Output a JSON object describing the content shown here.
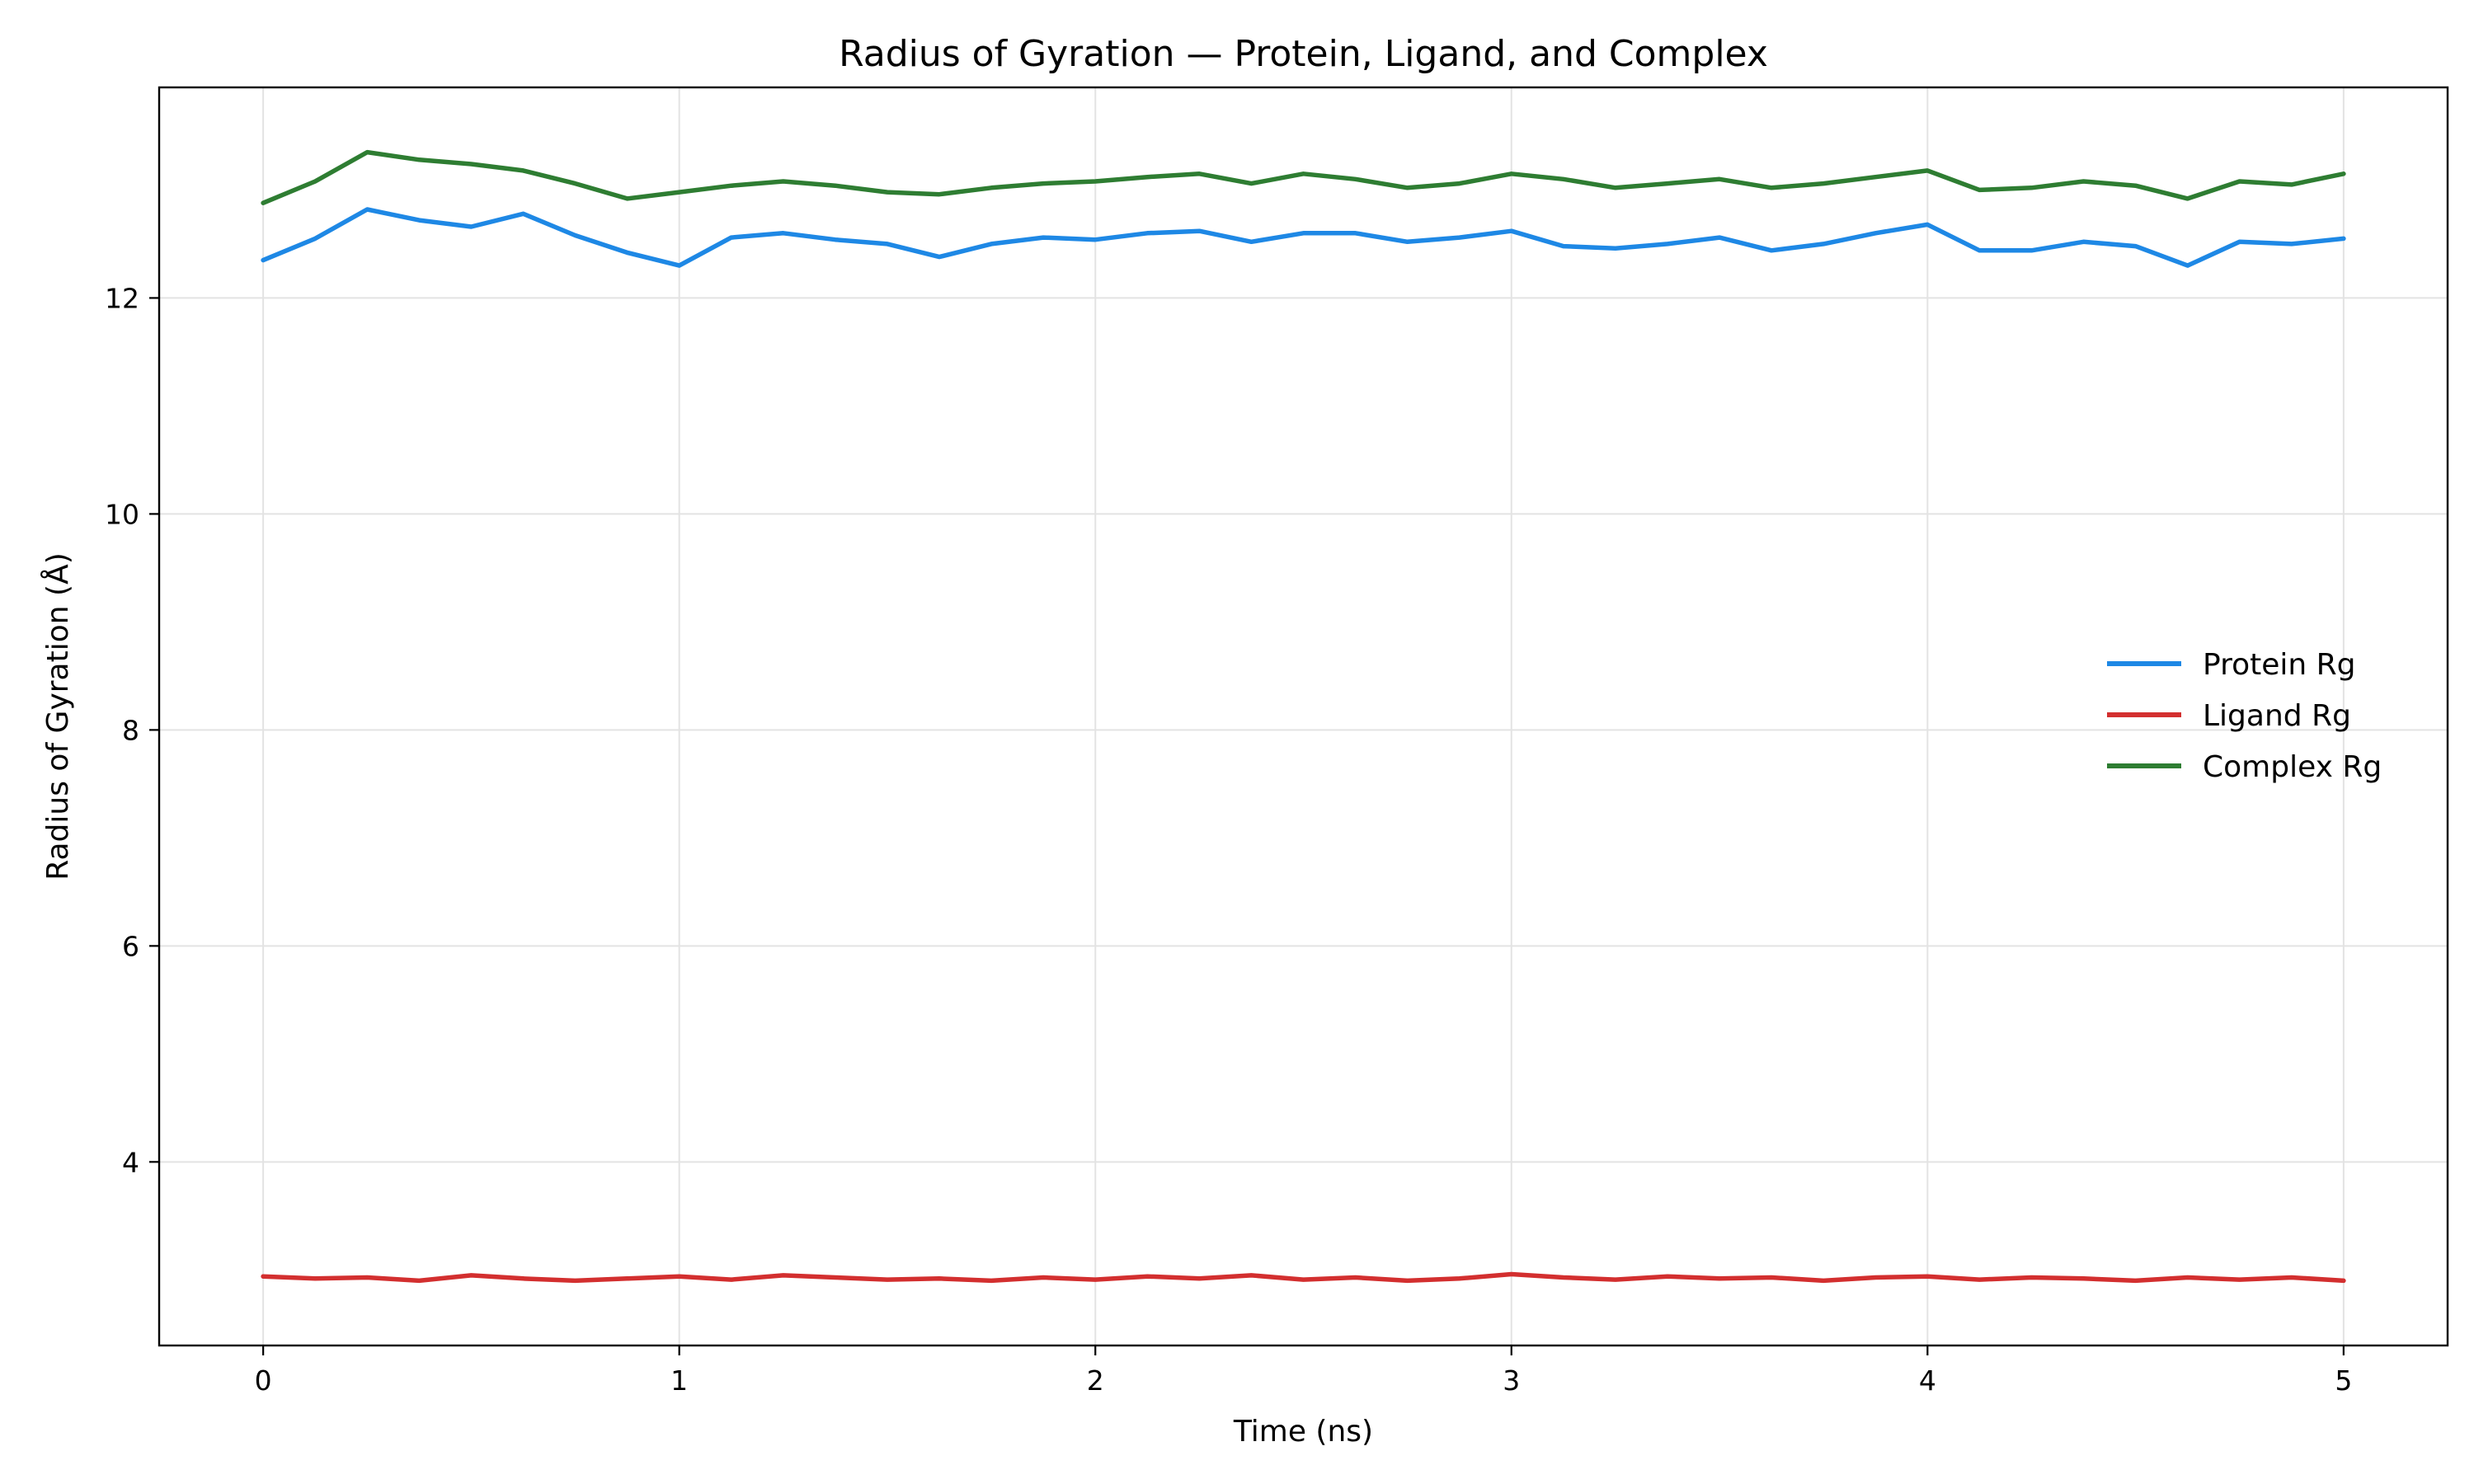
{
  "chart_data": {
    "type": "line",
    "title": "Radius of Gyration — Protein, Ligand, and Complex",
    "xlabel": "Time (ns)",
    "ylabel": "Radius of Gyration (Å)",
    "xlim": [
      -0.25,
      5.25
    ],
    "ylim": [
      2.3,
      13.95
    ],
    "xticks": [
      0,
      1,
      2,
      3,
      4,
      5
    ],
    "yticks": [
      4,
      6,
      8,
      10,
      12
    ],
    "grid": true,
    "legend_position": "center-right",
    "x": [
      0,
      0.125,
      0.25,
      0.375,
      0.5,
      0.625,
      0.75,
      0.875,
      1,
      1.125,
      1.25,
      1.375,
      1.5,
      1.625,
      1.75,
      1.875,
      2,
      2.125,
      2.25,
      2.375,
      2.5,
      2.625,
      2.75,
      2.875,
      3,
      3.125,
      3.25,
      3.375,
      3.5,
      3.625,
      3.75,
      3.875,
      4,
      4.125,
      4.25,
      4.375,
      4.5,
      4.625,
      4.75,
      4.875,
      5
    ],
    "series": [
      {
        "name": "Protein Rg",
        "color": "#1e88e5",
        "values": [
          12.35,
          12.55,
          12.82,
          12.72,
          12.66,
          12.78,
          12.58,
          12.42,
          12.3,
          12.56,
          12.6,
          12.54,
          12.5,
          12.38,
          12.5,
          12.56,
          12.54,
          12.6,
          12.62,
          12.52,
          12.6,
          12.6,
          12.52,
          12.56,
          12.62,
          12.48,
          12.46,
          12.5,
          12.56,
          12.44,
          12.5,
          12.6,
          12.68,
          12.44,
          12.44,
          12.52,
          12.48,
          12.3,
          12.52,
          12.5,
          12.55
        ]
      },
      {
        "name": "Ligand Rg",
        "color": "#d32f2f",
        "values": [
          2.94,
          2.92,
          2.93,
          2.9,
          2.95,
          2.92,
          2.9,
          2.92,
          2.94,
          2.91,
          2.95,
          2.93,
          2.91,
          2.92,
          2.9,
          2.93,
          2.91,
          2.94,
          2.92,
          2.95,
          2.91,
          2.93,
          2.9,
          2.92,
          2.96,
          2.93,
          2.91,
          2.94,
          2.92,
          2.93,
          2.9,
          2.93,
          2.94,
          2.91,
          2.93,
          2.92,
          2.9,
          2.93,
          2.91,
          2.93,
          2.9
        ]
      },
      {
        "name": "Complex Rg",
        "color": "#2e7d32",
        "values": [
          12.88,
          13.08,
          13.35,
          13.28,
          13.24,
          13.18,
          13.06,
          12.92,
          12.98,
          13.04,
          13.08,
          13.04,
          12.98,
          12.96,
          13.02,
          13.06,
          13.08,
          13.12,
          13.15,
          13.06,
          13.15,
          13.1,
          13.02,
          13.06,
          13.15,
          13.1,
          13.02,
          13.06,
          13.1,
          13.02,
          13.06,
          13.12,
          13.18,
          13.0,
          13.02,
          13.08,
          13.04,
          12.92,
          13.08,
          13.05,
          13.15
        ]
      }
    ]
  }
}
